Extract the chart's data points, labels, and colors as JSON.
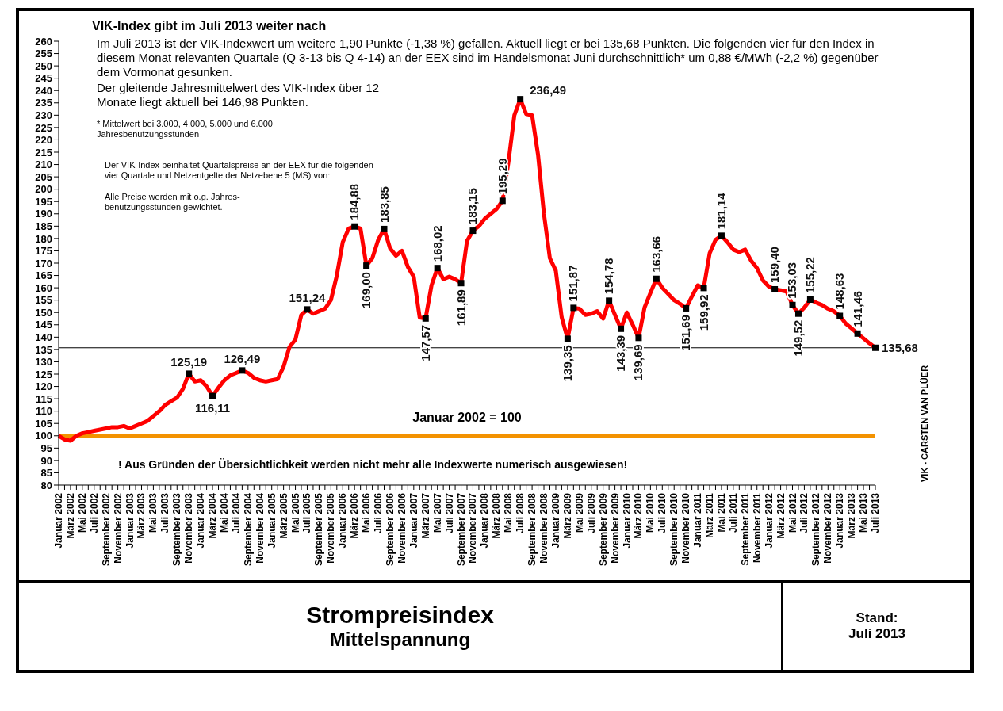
{
  "chart_data": {
    "type": "line",
    "title": "VIK-Index gibt im Juli 2013 weiter nach",
    "categories": [
      "Januar 2002",
      null,
      "März 2002",
      null,
      "Mai 2002",
      null,
      "Juli 2002",
      null,
      "September 2002",
      null,
      "November 2002",
      null,
      "Januar 2003",
      null,
      "März 2003",
      null,
      "Mai 2003",
      null,
      "Juli 2003",
      null,
      "September 2003",
      null,
      "November 2003",
      null,
      "Januar 2004",
      null,
      "März 2004",
      null,
      "Mai 2004",
      null,
      "Juli 2004",
      null,
      "September 2004",
      null,
      "November 2004",
      null,
      "Januar 2005",
      null,
      "März 2005",
      null,
      "Mai 2005",
      null,
      "Juli 2005",
      null,
      "September 2005",
      null,
      "November 2005",
      null,
      "Januar 2006",
      null,
      "März 2006",
      null,
      "Mai 2006",
      null,
      "Juli 2006",
      null,
      "September 2006",
      null,
      "November 2006",
      null,
      "Januar 2007",
      null,
      "März 2007",
      null,
      "Mai 2007",
      null,
      "Juli 2007",
      null,
      "September 2007",
      null,
      "November 2007",
      null,
      "Januar 2008",
      null,
      "März 2008",
      null,
      "Mai 2008",
      null,
      "Juli 2008",
      null,
      "September 2008",
      null,
      "November 2008",
      null,
      "Januar 2009",
      null,
      "März 2009",
      null,
      "Mai 2009",
      null,
      "Juli 2009",
      null,
      "September 2009",
      null,
      "November 2009",
      null,
      "Januar 2010",
      null,
      "März 2010",
      null,
      "Mai 2010",
      null,
      "Juli 2010",
      null,
      "September 2010",
      null,
      "November 2010",
      null,
      "Januar 2011",
      null,
      "März 2011",
      null,
      "Mai 2011",
      null,
      "Juli 2011",
      null,
      "September 2011",
      null,
      "November 2011",
      null,
      "Januar 2012",
      null,
      "März 2012",
      null,
      "Mai 2012",
      null,
      "Juli 2012",
      null,
      "September 2012",
      null,
      "November 2012",
      null,
      "Januar 2013",
      null,
      "März 2013",
      null,
      "Mai 2013",
      null,
      "Juli 2013"
    ],
    "values": [
      100,
      98.5,
      98,
      100,
      101,
      101.5,
      102,
      102.5,
      103,
      103.5,
      103.5,
      104,
      103,
      104,
      105,
      106,
      108,
      110,
      112.5,
      114,
      115.5,
      119,
      125.19,
      122,
      122.5,
      120,
      116.11,
      119.5,
      122.5,
      124.5,
      125.5,
      126.49,
      125.5,
      123.5,
      122.5,
      122,
      122.5,
      123,
      128,
      136,
      139,
      149,
      151.24,
      149.5,
      150.5,
      151.5,
      155,
      165,
      178.5,
      184,
      184.88,
      184,
      169,
      172,
      179.5,
      183.85,
      176,
      173,
      175,
      168.5,
      164.5,
      148,
      147.57,
      161,
      168.02,
      163.5,
      164.5,
      163.5,
      161.89,
      179,
      183.15,
      185,
      188,
      190,
      192,
      195.29,
      211,
      230,
      236.49,
      230.5,
      230,
      214,
      190,
      172,
      167,
      148,
      139.35,
      151.87,
      151.5,
      149,
      149.5,
      150.5,
      147.5,
      154.78,
      149,
      143.39,
      150,
      145,
      139.69,
      152,
      158,
      163.66,
      160,
      157.5,
      155,
      153.5,
      151.69,
      156.5,
      161,
      159.92,
      174,
      179.5,
      181.14,
      178.5,
      175.5,
      174.5,
      175.5,
      171,
      168,
      163,
      160.5,
      159.4,
      159,
      158.5,
      153.03,
      149.52,
      152,
      155.22,
      154,
      153,
      151.5,
      150.5,
      148.63,
      145.5,
      143.5,
      141.46,
      139.5,
      137.5,
      135.68
    ],
    "value_labels": [
      null,
      null,
      null,
      null,
      null,
      null,
      null,
      null,
      null,
      null,
      null,
      null,
      null,
      null,
      null,
      null,
      null,
      null,
      null,
      null,
      null,
      null,
      "125,19",
      null,
      null,
      null,
      "116,11",
      null,
      null,
      null,
      null,
      "126,49",
      null,
      null,
      null,
      null,
      null,
      null,
      null,
      null,
      null,
      null,
      "151,24",
      null,
      null,
      null,
      null,
      null,
      null,
      null,
      "184,88",
      null,
      "169,00",
      null,
      null,
      "183,85",
      null,
      null,
      null,
      null,
      null,
      null,
      "147,57",
      null,
      "168,02",
      null,
      null,
      null,
      "161,89",
      null,
      "183,15",
      null,
      null,
      null,
      null,
      "195,29",
      null,
      null,
      "236,49",
      null,
      null,
      null,
      null,
      null,
      null,
      null,
      "139,35",
      "151,87",
      null,
      null,
      null,
      null,
      null,
      "154,78",
      null,
      "143,39",
      null,
      null,
      "139,69",
      null,
      null,
      "163,66",
      null,
      null,
      null,
      null,
      "151,69",
      null,
      null,
      "159,92",
      null,
      null,
      "181,14",
      null,
      null,
      null,
      null,
      null,
      null,
      null,
      null,
      "159,40",
      null,
      null,
      "153,03",
      "149,52",
      null,
      "155,22",
      null,
      null,
      null,
      null,
      "148,63",
      null,
      null,
      "141,46",
      null,
      null,
      "135,68"
    ],
    "color": "#ff0000",
    "line_style": "solid",
    "ylim": [
      80,
      260
    ],
    "yticks": [
      80,
      85,
      90,
      95,
      100,
      105,
      110,
      115,
      120,
      125,
      130,
      135,
      140,
      145,
      150,
      155,
      160,
      165,
      170,
      175,
      180,
      185,
      190,
      195,
      200,
      205,
      210,
      215,
      220,
      225,
      230,
      235,
      240,
      245,
      250,
      255,
      260
    ],
    "ref_lines": [
      {
        "axis": "y",
        "value": 135.68,
        "color": "#000000"
      },
      {
        "axis": "y",
        "value": 100,
        "label": "Januar 2002 = 100",
        "color": "#f39200"
      }
    ],
    "annotations": [
      "Im Juli 2013 ist der VIK-Indexwert um weitere 1,90 Punkte (-1,38 %) gefallen. Aktuell liegt er bei 135,68 Punkten. Die folgenden vier für den Index in diesem Monat relevanten Quartale (Q 3-13 bis Q 4-14) an der EEX sind im Handelsmonat Juni durchschnittlich* um 0,88 €/MWh (-2,2 %) gegenüber dem Vormonat gesunken.",
      "Der gleitende Jahresmittelwert des VIK-Index über 12 Monate liegt aktuell bei 146,98 Punkten.",
      "* Mittelwert bei 3.000, 4.000, 5.000 und 6.000 Jahresbenutzungsstunden",
      "Der VIK-Index beinhaltet Quartalspreise an der EEX für die folgenden vier Quartale und Netzentgelte der Netzebene 5 (MS) von:",
      "Alle Preise werden mit o.g. Jahres-\nbenutzungsstunden gewichtet.",
      "! Aus Gründen der Übersichtlichkeit werden nicht mehr alle Indexwerte numerisch ausgewiesen!",
      "VIK - CARSTEN VAN PLÜER",
      "Strompreisindex",
      "Mittelspannung",
      "Stand:\nJuli 2013"
    ]
  }
}
